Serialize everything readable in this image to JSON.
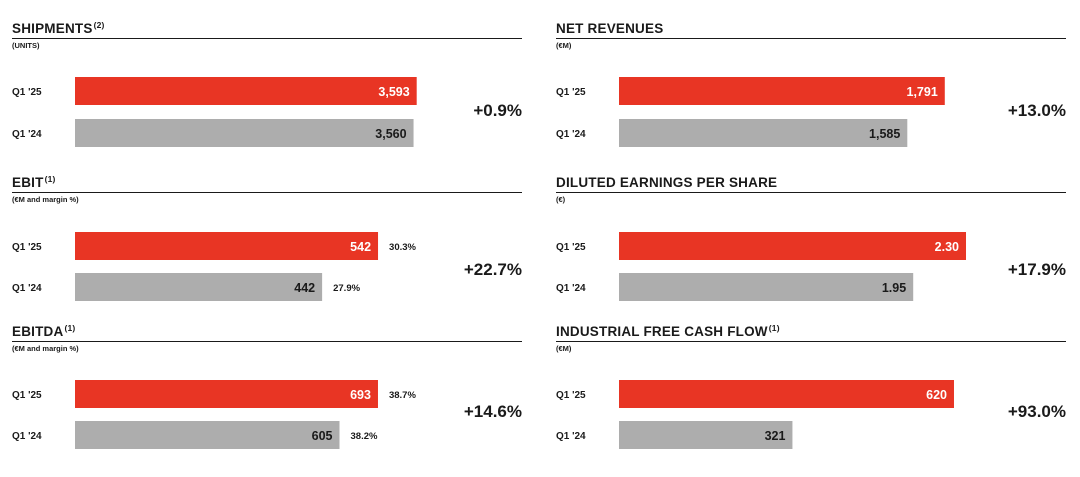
{
  "colors": {
    "current": "#e83524",
    "prior": "#adadad",
    "text": "#1a1a1a"
  },
  "chart_data": [
    {
      "type": "bar",
      "title": "SHIPMENTS",
      "note": "(2)",
      "unit": "(UNITS)",
      "categories": [
        "Q1 '25",
        "Q1 '24"
      ],
      "values": [
        3593,
        3560
      ],
      "value_labels": [
        "3,593",
        "3,560"
      ],
      "margins": [],
      "change": "+0.9%"
    },
    {
      "type": "bar",
      "title": "NET REVENUES",
      "note": "",
      "unit": "(€M)",
      "categories": [
        "Q1 '25",
        "Q1 '24"
      ],
      "values": [
        1791,
        1585
      ],
      "value_labels": [
        "1,791",
        "1,585"
      ],
      "margins": [],
      "change": "+13.0%"
    },
    {
      "type": "bar",
      "title": "EBIT",
      "note": "(1)",
      "unit": "(€M and margin %)",
      "categories": [
        "Q1 '25",
        "Q1 '24"
      ],
      "values": [
        542,
        442
      ],
      "value_labels": [
        "542",
        "442"
      ],
      "margins": [
        "30.3%",
        "27.9%"
      ],
      "change": "+22.7%"
    },
    {
      "type": "bar",
      "title": "DILUTED EARNINGS PER SHARE",
      "note": "",
      "unit": "(€)",
      "categories": [
        "Q1 '25",
        "Q1 '24"
      ],
      "values": [
        2.3,
        1.95
      ],
      "value_labels": [
        "2.30",
        "1.95"
      ],
      "margins": [],
      "change": "+17.9%"
    },
    {
      "type": "bar",
      "title": "EBITDA",
      "note": "(1)",
      "unit": "(€M and margin %)",
      "categories": [
        "Q1 '25",
        "Q1 '24"
      ],
      "values": [
        693,
        605
      ],
      "value_labels": [
        "693",
        "605"
      ],
      "margins": [
        "38.7%",
        "38.2%"
      ],
      "change": "+14.6%"
    },
    {
      "type": "bar",
      "title": "INDUSTRIAL FREE CASH FLOW",
      "note": "(1)",
      "unit": "(€M)",
      "categories": [
        "Q1 '25",
        "Q1 '24"
      ],
      "values": [
        620,
        321
      ],
      "value_labels": [
        "620",
        "321"
      ],
      "margins": [],
      "change": "+93.0%"
    }
  ]
}
